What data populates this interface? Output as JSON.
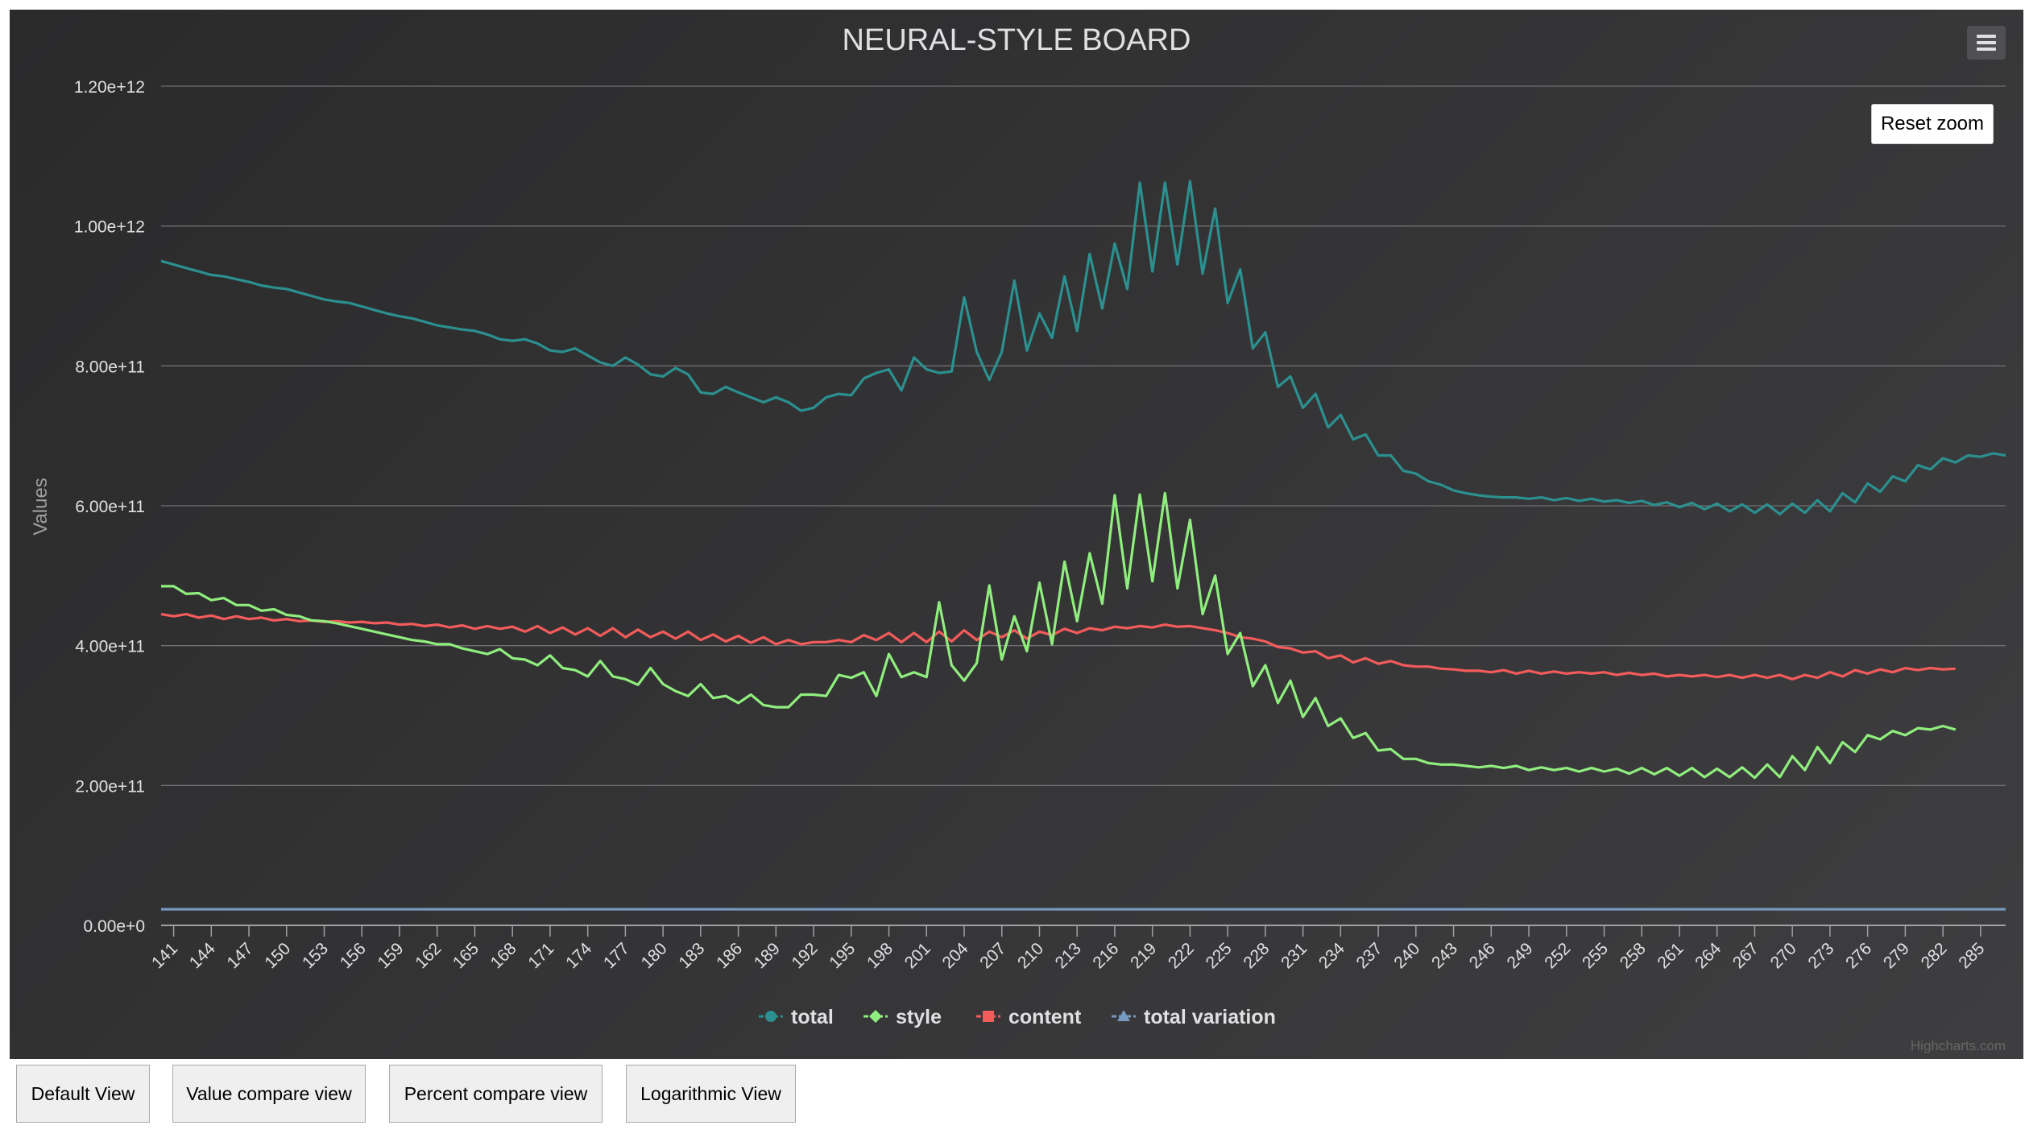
{
  "buttons": {
    "reset_zoom": "Reset zoom",
    "default_view": "Default View",
    "value_compare": "Value compare view",
    "percent_compare": "Percent compare view",
    "logarithmic": "Logarithmic View"
  },
  "credits": "Highcharts.com",
  "icons": {
    "menu": "hamburger-menu-icon"
  },
  "chart_data": {
    "type": "line",
    "title": "NEURAL-STYLE BOARD",
    "xlabel": "",
    "ylabel": "Values",
    "x_start": 140,
    "x_end": 287,
    "x_tick_labels": [
      "141",
      "144",
      "147",
      "150",
      "153",
      "156",
      "159",
      "162",
      "165",
      "168",
      "171",
      "174",
      "177",
      "180",
      "183",
      "186",
      "189",
      "192",
      "195",
      "198",
      "201",
      "204",
      "207",
      "210",
      "213",
      "216",
      "219",
      "222",
      "225",
      "228",
      "231",
      "234",
      "237",
      "240",
      "243",
      "246",
      "249",
      "252",
      "255",
      "258",
      "261",
      "264",
      "267",
      "270",
      "273",
      "276",
      "279",
      "282",
      "285"
    ],
    "y_tick_labels": [
      "0.00e+0",
      "2.00e+11",
      "4.00e+11",
      "6.00e+11",
      "8.00e+11",
      "1.00e+12",
      "1.20e+12"
    ],
    "ylim": [
      0,
      1200000000000
    ],
    "grid": true,
    "legend_position": "bottom-center",
    "series": [
      {
        "name": "total",
        "color": "#2b908f",
        "marker": "circle",
        "values": [
          950000000000.0,
          945000000000.0,
          940000000000.0,
          935000000000.0,
          930000000000.0,
          928000000000.0,
          924000000000.0,
          920000000000.0,
          915000000000.0,
          912000000000.0,
          910000000000.0,
          905000000000.0,
          900000000000.0,
          895000000000.0,
          892000000000.0,
          890000000000.0,
          885000000000.0,
          880000000000.0,
          875000000000.0,
          871000000000.0,
          868000000000.0,
          863000000000.0,
          858000000000.0,
          855000000000.0,
          852000000000.0,
          850000000000.0,
          845000000000.0,
          838000000000.0,
          836000000000.0,
          838000000000.0,
          832000000000.0,
          822000000000.0,
          820000000000.0,
          825000000000.0,
          815000000000.0,
          805000000000.0,
          800000000000.0,
          812000000000.0,
          802000000000.0,
          788000000000.0,
          785000000000.0,
          797000000000.0,
          788000000000.0,
          762000000000.0,
          760000000000.0,
          770000000000.0,
          762000000000.0,
          755000000000.0,
          748000000000.0,
          755000000000.0,
          748000000000.0,
          736000000000.0,
          740000000000.0,
          755000000000.0,
          760000000000.0,
          758000000000.0,
          782000000000.0,
          790000000000.0,
          795000000000.0,
          765000000000.0,
          812000000000.0,
          795000000000.0,
          790000000000.0,
          792000000000.0,
          898000000000.0,
          820000000000.0,
          780000000000.0,
          820000000000.0,
          922000000000.0,
          822000000000.0,
          875000000000.0,
          840000000000.0,
          928000000000.0,
          850000000000.0,
          960000000000.0,
          882000000000.0,
          975000000000.0,
          910000000000.0,
          1062000000000.0,
          935000000000.0,
          1062000000000.0,
          945000000000.0,
          1064000000000.0,
          932000000000.0,
          1025000000000.0,
          890000000000.0,
          938000000000.0,
          825000000000.0,
          848000000000.0,
          770000000000.0,
          785000000000.0,
          740000000000.0,
          760000000000.0,
          712000000000.0,
          730000000000.0,
          695000000000.0,
          702000000000.0,
          672000000000.0,
          672000000000.0,
          650000000000.0,
          646000000000.0,
          635000000000.0,
          630000000000.0,
          622000000000.0,
          618000000000.0,
          615000000000.0,
          613000000000.0,
          612000000000.0,
          612000000000.0,
          610000000000.0,
          612000000000.0,
          608000000000.0,
          611000000000.0,
          607000000000.0,
          610000000000.0,
          606000000000.0,
          608000000000.0,
          604000000000.0,
          607000000000.0,
          601000000000.0,
          605000000000.0,
          598000000000.0,
          604000000000.0,
          595000000000.0,
          603000000000.0,
          592000000000.0,
          602000000000.0,
          590000000000.0,
          602000000000.0,
          588000000000.0,
          603000000000.0,
          590000000000.0,
          608000000000.0,
          592000000000.0,
          618000000000.0,
          605000000000.0,
          632000000000.0,
          620000000000.0,
          642000000000.0,
          635000000000.0,
          658000000000.0,
          652000000000.0,
          668000000000.0,
          662000000000.0,
          672000000000.0,
          670000000000.0,
          675000000000.0,
          672000000000.0
        ]
      },
      {
        "name": "style",
        "color": "#90ee7e",
        "marker": "diamond",
        "values": [
          485000000000.0,
          485000000000.0,
          474000000000.0,
          475000000000.0,
          465000000000.0,
          468000000000.0,
          458000000000.0,
          458000000000.0,
          450000000000.0,
          452000000000.0,
          444000000000.0,
          442000000000.0,
          436000000000.0,
          435000000000.0,
          432000000000.0,
          428000000000.0,
          424000000000.0,
          420000000000.0,
          416000000000.0,
          412000000000.0,
          408000000000.0,
          406000000000.0,
          402000000000.0,
          402000000000.0,
          396000000000.0,
          392000000000.0,
          388000000000.0,
          395000000000.0,
          382000000000.0,
          380000000000.0,
          372000000000.0,
          386000000000.0,
          368000000000.0,
          365000000000.0,
          356000000000.0,
          378000000000.0,
          356000000000.0,
          352000000000.0,
          344000000000.0,
          368000000000.0,
          345000000000.0,
          335000000000.0,
          328000000000.0,
          345000000000.0,
          325000000000.0,
          328000000000.0,
          318000000000.0,
          330000000000.0,
          315000000000.0,
          312000000000.0,
          312000000000.0,
          330000000000.0,
          330000000000.0,
          328000000000.0,
          358000000000.0,
          354000000000.0,
          362000000000.0,
          328000000000.0,
          388000000000.0,
          355000000000.0,
          362000000000.0,
          355000000000.0,
          462000000000.0,
          372000000000.0,
          350000000000.0,
          375000000000.0,
          486000000000.0,
          380000000000.0,
          442000000000.0,
          392000000000.0,
          490000000000.0,
          402000000000.0,
          520000000000.0,
          435000000000.0,
          532000000000.0,
          460000000000.0,
          615000000000.0,
          482000000000.0,
          616000000000.0,
          492000000000.0,
          618000000000.0,
          482000000000.0,
          580000000000.0,
          445000000000.0,
          500000000000.0,
          388000000000.0,
          418000000000.0,
          342000000000.0,
          372000000000.0,
          318000000000.0,
          350000000000.0,
          298000000000.0,
          325000000000.0,
          285000000000.0,
          296000000000.0,
          268000000000.0,
          275000000000.0,
          250000000000.0,
          252000000000.0,
          238000000000.0,
          238000000000.0,
          232000000000.0,
          230000000000.0,
          230000000000.0,
          228000000000.0,
          226000000000.0,
          228000000000.0,
          225000000000.0,
          228000000000.0,
          222000000000.0,
          226000000000.0,
          222000000000.0,
          225000000000.0,
          220000000000.0,
          225000000000.0,
          220000000000.0,
          224000000000.0,
          217000000000.0,
          225000000000.0,
          216000000000.0,
          225000000000.0,
          214000000000.0,
          225000000000.0,
          212000000000.0,
          224000000000.0,
          212000000000.0,
          226000000000.0,
          211000000000.0,
          230000000000.0,
          212000000000.0,
          242000000000.0,
          222000000000.0,
          255000000000.0,
          232000000000.0,
          262000000000.0,
          248000000000.0,
          272000000000.0,
          266000000000.0,
          278000000000.0,
          272000000000.0,
          282000000000.0,
          280000000000.0,
          285000000000.0,
          280000000000.0
        ]
      },
      {
        "name": "content",
        "color": "#f45b5b",
        "marker": "square",
        "values": [
          445000000000.0,
          442000000000.0,
          445000000000.0,
          440000000000.0,
          443000000000.0,
          438000000000.0,
          442000000000.0,
          438000000000.0,
          440000000000.0,
          436000000000.0,
          438000000000.0,
          435000000000.0,
          436000000000.0,
          434000000000.0,
          435000000000.0,
          433000000000.0,
          434000000000.0,
          432000000000.0,
          433000000000.0,
          430000000000.0,
          431000000000.0,
          428000000000.0,
          430000000000.0,
          426000000000.0,
          429000000000.0,
          424000000000.0,
          428000000000.0,
          424000000000.0,
          427000000000.0,
          420000000000.0,
          428000000000.0,
          418000000000.0,
          426000000000.0,
          416000000000.0,
          425000000000.0,
          414000000000.0,
          425000000000.0,
          412000000000.0,
          423000000000.0,
          412000000000.0,
          420000000000.0,
          410000000000.0,
          420000000000.0,
          408000000000.0,
          416000000000.0,
          406000000000.0,
          414000000000.0,
          404000000000.0,
          412000000000.0,
          402000000000.0,
          408000000000.0,
          402000000000.0,
          405000000000.0,
          405000000000.0,
          408000000000.0,
          405000000000.0,
          415000000000.0,
          408000000000.0,
          418000000000.0,
          405000000000.0,
          418000000000.0,
          405000000000.0,
          420000000000.0,
          406000000000.0,
          422000000000.0,
          408000000000.0,
          420000000000.0,
          412000000000.0,
          422000000000.0,
          410000000000.0,
          420000000000.0,
          415000000000.0,
          424000000000.0,
          418000000000.0,
          425000000000.0,
          422000000000.0,
          427000000000.0,
          425000000000.0,
          428000000000.0,
          426000000000.0,
          430000000000.0,
          427000000000.0,
          428000000000.0,
          425000000000.0,
          422000000000.0,
          418000000000.0,
          412000000000.0,
          410000000000.0,
          406000000000.0,
          398000000000.0,
          396000000000.0,
          390000000000.0,
          392000000000.0,
          382000000000.0,
          386000000000.0,
          376000000000.0,
          382000000000.0,
          374000000000.0,
          378000000000.0,
          372000000000.0,
          370000000000.0,
          370000000000.0,
          367000000000.0,
          366000000000.0,
          364000000000.0,
          364000000000.0,
          362000000000.0,
          365000000000.0,
          360000000000.0,
          364000000000.0,
          360000000000.0,
          363000000000.0,
          360000000000.0,
          362000000000.0,
          360000000000.0,
          362000000000.0,
          358000000000.0,
          361000000000.0,
          358000000000.0,
          360000000000.0,
          356000000000.0,
          358000000000.0,
          356000000000.0,
          358000000000.0,
          355000000000.0,
          358000000000.0,
          354000000000.0,
          358000000000.0,
          354000000000.0,
          358000000000.0,
          352000000000.0,
          358000000000.0,
          354000000000.0,
          362000000000.0,
          356000000000.0,
          365000000000.0,
          360000000000.0,
          366000000000.0,
          362000000000.0,
          368000000000.0,
          365000000000.0,
          368000000000.0,
          366000000000.0,
          367000000000.0
        ]
      },
      {
        "name": "total variation",
        "color": "#7798bf",
        "marker": "triangle",
        "values": [
          23000000000.0,
          23000000000.0,
          23000000000.0,
          23000000000.0,
          23000000000.0,
          23000000000.0,
          23000000000.0,
          23000000000.0,
          23000000000.0,
          23000000000.0,
          23000000000.0,
          23000000000.0,
          23000000000.0,
          23000000000.0,
          23000000000.0,
          23000000000.0,
          23000000000.0,
          23000000000.0,
          23000000000.0,
          23000000000.0,
          23000000000.0,
          23000000000.0,
          23000000000.0,
          23000000000.0,
          23000000000.0,
          23000000000.0,
          23000000000.0,
          23000000000.0,
          23000000000.0,
          23000000000.0,
          23000000000.0,
          23000000000.0,
          23000000000.0,
          23000000000.0,
          23000000000.0,
          23000000000.0,
          23000000000.0,
          23000000000.0,
          23000000000.0,
          23000000000.0,
          23000000000.0,
          23000000000.0,
          23000000000.0,
          23000000000.0,
          23000000000.0,
          23000000000.0,
          23000000000.0,
          23000000000.0,
          23000000000.0,
          23000000000.0,
          23000000000.0,
          23000000000.0,
          23000000000.0,
          23000000000.0,
          23000000000.0,
          23000000000.0,
          23000000000.0,
          23000000000.0,
          23000000000.0,
          23000000000.0,
          23000000000.0,
          23000000000.0,
          23000000000.0,
          23000000000.0,
          23000000000.0,
          23000000000.0,
          23000000000.0,
          23000000000.0,
          23000000000.0,
          23000000000.0,
          23000000000.0,
          23000000000.0,
          23000000000.0,
          23000000000.0,
          23000000000.0,
          23000000000.0,
          23000000000.0,
          23000000000.0,
          23000000000.0,
          23000000000.0,
          23000000000.0,
          23000000000.0,
          23000000000.0,
          23000000000.0,
          23000000000.0,
          23000000000.0,
          23000000000.0,
          23000000000.0,
          23000000000.0,
          23000000000.0,
          23000000000.0,
          23000000000.0,
          23000000000.0,
          23000000000.0,
          23000000000.0,
          23000000000.0,
          23000000000.0,
          23000000000.0,
          23000000000.0,
          23000000000.0,
          23000000000.0,
          23000000000.0,
          23000000000.0,
          23000000000.0,
          23000000000.0,
          23000000000.0,
          23000000000.0,
          23000000000.0,
          23000000000.0,
          23000000000.0,
          23000000000.0,
          23000000000.0,
          23000000000.0,
          23000000000.0,
          23000000000.0,
          23000000000.0,
          23000000000.0,
          23000000000.0,
          23000000000.0,
          23000000000.0,
          23000000000.0,
          23000000000.0,
          23000000000.0,
          23000000000.0,
          23000000000.0,
          23000000000.0,
          23000000000.0,
          23000000000.0,
          23000000000.0,
          23000000000.0,
          23000000000.0,
          23000000000.0,
          23000000000.0,
          23000000000.0,
          23000000000.0,
          23000000000.0,
          23000000000.0,
          23000000000.0,
          23000000000.0,
          23000000000.0,
          23000000000.0,
          23000000000.0,
          23000000000.0,
          23000000000.0,
          23000000000.0,
          23000000000.0,
          23000000000.0,
          23000000000.0
        ]
      }
    ]
  }
}
